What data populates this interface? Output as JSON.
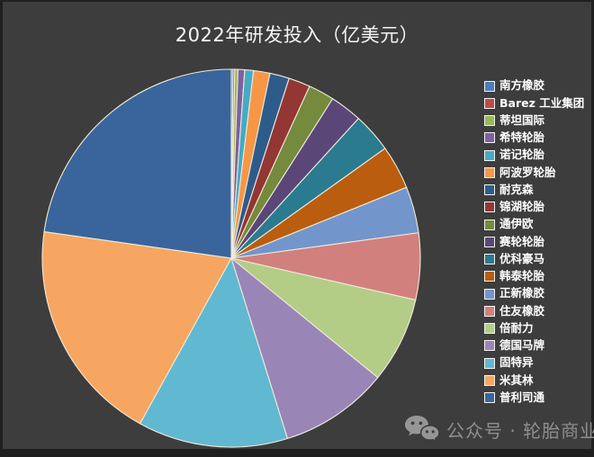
{
  "chart_data": {
    "type": "pie",
    "title": "2022年研发投入（亿美元）",
    "unit": "亿美元",
    "values_estimated_from_slice_angles": true,
    "start_angle_deg": 0,
    "direction": "clockwise",
    "legend_position": "right",
    "slice_border_color": "#EFEAD9",
    "segments": [
      {
        "label": "南方橡胶",
        "value": 0.05,
        "percent": 0.15,
        "color": "#4A7EBB"
      },
      {
        "label": "Barez 工业集团",
        "value": 0.05,
        "percent": 0.15,
        "color": "#BE4B48"
      },
      {
        "label": "蒂坦国际",
        "value": 0.09,
        "percent": 0.27,
        "color": "#98B954"
      },
      {
        "label": "希特轮胎",
        "value": 0.19,
        "percent": 0.57,
        "color": "#7D60A0"
      },
      {
        "label": "诺记轮胎",
        "value": 0.25,
        "percent": 0.75,
        "color": "#46AAC5"
      },
      {
        "label": "阿波罗轮胎",
        "value": 0.47,
        "percent": 1.4,
        "color": "#F79646"
      },
      {
        "label": "耐克森",
        "value": 0.56,
        "percent": 1.67,
        "color": "#2E5C8A"
      },
      {
        "label": "锦湖轮胎",
        "value": 0.62,
        "percent": 1.85,
        "color": "#943634"
      },
      {
        "label": "通伊欧",
        "value": 0.74,
        "percent": 2.21,
        "color": "#758A3D"
      },
      {
        "label": "赛轮轮胎",
        "value": 0.92,
        "percent": 2.74,
        "color": "#5A4778"
      },
      {
        "label": "优科豪马",
        "value": 1.13,
        "percent": 3.37,
        "color": "#2A7B8F"
      },
      {
        "label": "韩泰轮胎",
        "value": 1.26,
        "percent": 3.76,
        "color": "#BA5D0F"
      },
      {
        "label": "正新橡胶",
        "value": 1.33,
        "percent": 3.97,
        "color": "#7296CB"
      },
      {
        "label": "住友橡胶",
        "value": 1.91,
        "percent": 5.7,
        "color": "#D1807E"
      },
      {
        "label": "倍耐力",
        "value": 2.46,
        "percent": 7.34,
        "color": "#B3CD87"
      },
      {
        "label": "德国马牌",
        "value": 3.12,
        "percent": 9.31,
        "color": "#9A85B7"
      },
      {
        "label": "固特异",
        "value": 4.3,
        "percent": 12.83,
        "color": "#61B8D1"
      },
      {
        "label": "米其林",
        "value": 6.44,
        "percent": 19.21,
        "color": "#F6A661"
      },
      {
        "label": "普利司通",
        "value": 7.63,
        "percent": 22.76,
        "color": "#3A659C"
      }
    ]
  },
  "watermark": {
    "text": "公众号 · 轮胎商业",
    "icon": "wechat-icon"
  },
  "colors": {
    "background": "#3D3D3D",
    "frame": "#1F1F1F",
    "title_text": "#F5F5F5",
    "legend_text": "#FFFFFF",
    "slice_border": "#EFEAD9",
    "watermark_text": "#8E8E8E"
  }
}
